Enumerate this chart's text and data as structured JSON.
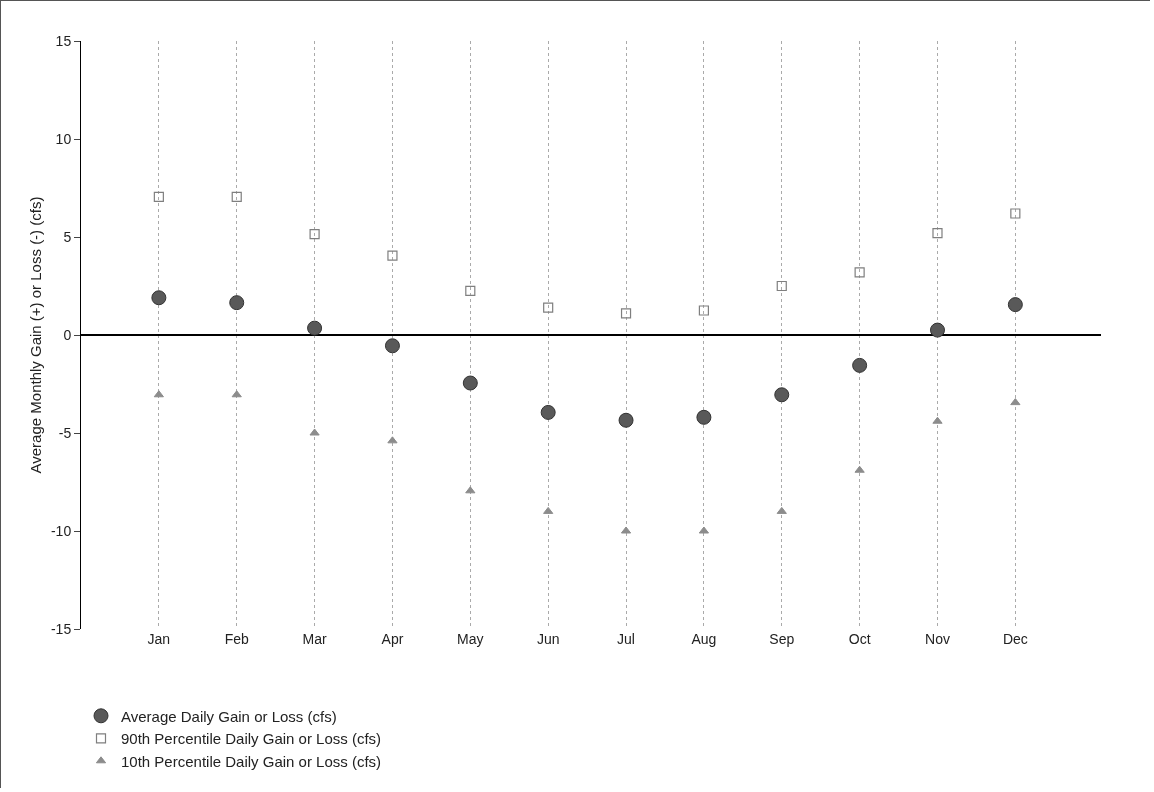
{
  "chart_data": {
    "type": "scatter",
    "ylabel": "Average Monthly Gain (+) or Loss (-) (cfs)",
    "categories": [
      "Jan",
      "Feb",
      "Mar",
      "Apr",
      "May",
      "Jun",
      "Jul",
      "Aug",
      "Sep",
      "Oct",
      "Nov",
      "Dec"
    ],
    "series": [
      {
        "name": "Average Daily Gain or Loss (cfs)",
        "color": "#595959",
        "marker": "circle",
        "values": [
          1.9,
          1.65,
          0.35,
          -0.55,
          -2.45,
          -3.95,
          -4.35,
          -4.2,
          -3.05,
          -1.55,
          0.25,
          1.55
        ]
      },
      {
        "name": "90th Percentile Daily Gain or Loss (cfs)",
        "color": "#7f7f7f",
        "marker": "square",
        "values": [
          7.05,
          7.05,
          5.15,
          4.05,
          2.25,
          1.4,
          1.1,
          1.25,
          2.5,
          3.2,
          5.2,
          6.2
        ]
      },
      {
        "name": "10th Percentile Daily Gain or Loss (cfs)",
        "color": "#8c8c8c",
        "marker": "triangle",
        "values": [
          -3.05,
          -3.05,
          -5,
          -5.4,
          -7.95,
          -9,
          -10,
          -10,
          -9,
          -6.9,
          -4.4,
          -3.45
        ]
      }
    ],
    "ylim": [
      -15,
      15
    ],
    "yticks": [
      -15,
      -10,
      -5,
      0,
      5,
      10,
      15
    ],
    "grid": "x",
    "legend": "bottom"
  }
}
